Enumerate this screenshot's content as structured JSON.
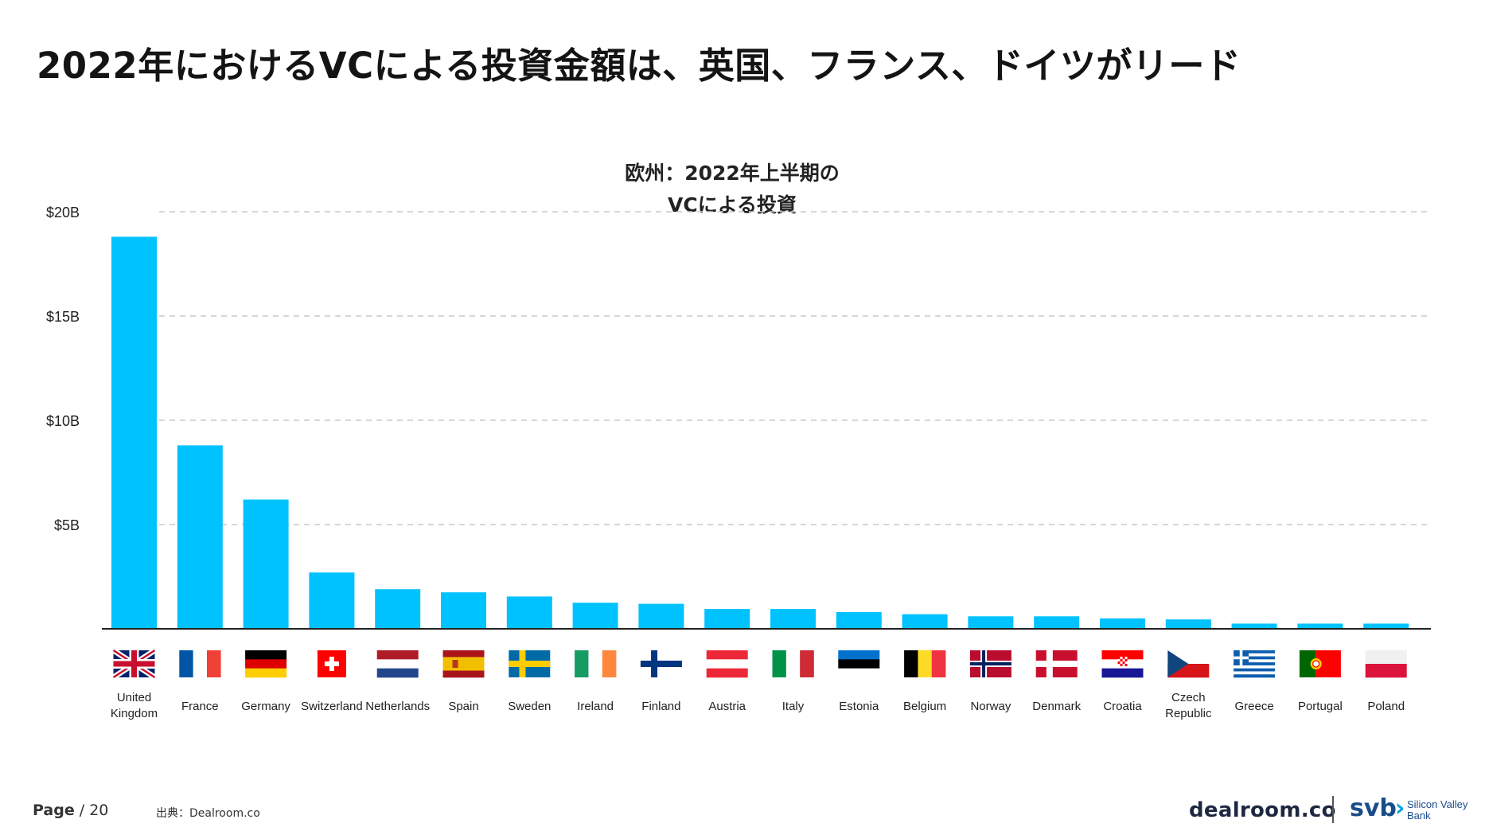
{
  "slide": {
    "title": "2022年におけるVCによる投資金額は、英国、フランス、ドイツがリード"
  },
  "footer": {
    "page_label": "Page",
    "page_number": "/ 20",
    "source": "出典：Dealroom.co"
  },
  "logos": {
    "dealroom": "dealroom.co",
    "svb": "svb",
    "svb_name_line1": "Silicon Valley",
    "svb_name_line2": "Bank"
  },
  "colors": {
    "bar": "#00c2ff",
    "gridline": "#c8c8c8",
    "axis": "#222222"
  },
  "chart_data": {
    "type": "bar",
    "title_line1": "欧州：2022年上半期の",
    "title_line2": "VCによる投資",
    "y_tick_labels": [
      "$5B",
      "$10B",
      "$15B",
      "$20B"
    ],
    "y_ticks": [
      5,
      10,
      15,
      20
    ],
    "ylim": [
      0,
      21
    ],
    "grid": true,
    "categories": [
      "United Kingdom",
      "France",
      "Germany",
      "Switzerland",
      "Netherlands",
      "Spain",
      "Sweden",
      "Ireland",
      "Finland",
      "Austria",
      "Italy",
      "Estonia",
      "Belgium",
      "Norway",
      "Denmark",
      "Croatia",
      "Czech Republic",
      "Greece",
      "Portugal",
      "Poland"
    ],
    "category_labels": [
      [
        "United",
        "Kingdom"
      ],
      [
        "France"
      ],
      [
        "Germany"
      ],
      [
        "Switzerland"
      ],
      [
        "Netherlands"
      ],
      [
        "Spain"
      ],
      [
        "Sweden"
      ],
      [
        "Ireland"
      ],
      [
        "Finland"
      ],
      [
        "Austria"
      ],
      [
        "Italy"
      ],
      [
        "Estonia"
      ],
      [
        "Belgium"
      ],
      [
        "Norway"
      ],
      [
        "Denmark"
      ],
      [
        "Croatia"
      ],
      [
        "Czech",
        "Republic"
      ],
      [
        "Greece"
      ],
      [
        "Portugal"
      ],
      [
        "Poland"
      ]
    ],
    "values": [
      18.8,
      8.8,
      6.2,
      2.7,
      1.9,
      1.75,
      1.55,
      1.25,
      1.2,
      0.95,
      0.95,
      0.8,
      0.7,
      0.6,
      0.6,
      0.5,
      0.45,
      0.25,
      0.25,
      0.25
    ],
    "flags": [
      "flag-uk-icon",
      "flag-france-icon",
      "flag-germany-icon",
      "flag-switzerland-icon",
      "flag-netherlands-icon",
      "flag-spain-icon",
      "flag-sweden-icon",
      "flag-ireland-icon",
      "flag-finland-icon",
      "flag-austria-icon",
      "flag-italy-icon",
      "flag-estonia-icon",
      "flag-belgium-icon",
      "flag-norway-icon",
      "flag-denmark-icon",
      "flag-croatia-icon",
      "flag-czech-icon",
      "flag-greece-icon",
      "flag-portugal-icon",
      "flag-poland-icon"
    ]
  }
}
